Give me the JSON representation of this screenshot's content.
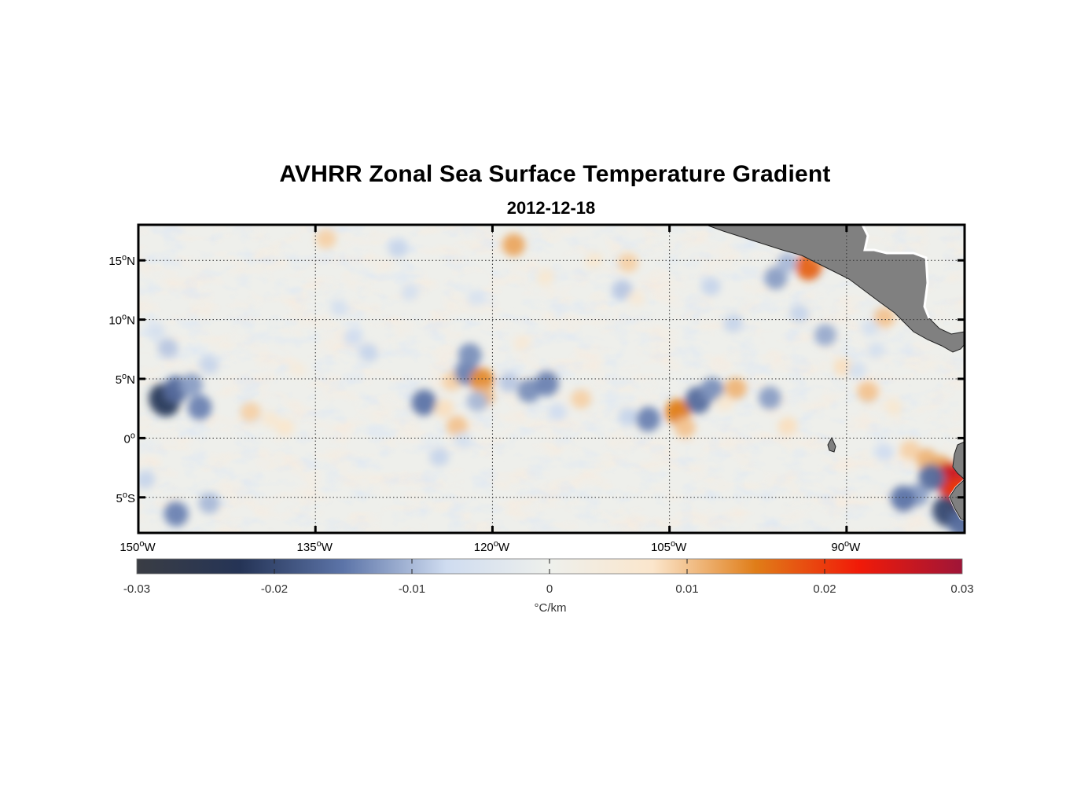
{
  "figure": {
    "title": "AVHRR Zonal Sea Surface Temperature Gradient",
    "subtitle": "2012-12-18"
  },
  "map": {
    "lon_range": [
      -150,
      -80
    ],
    "lat_range": [
      -8,
      18
    ],
    "lon_ticks": [
      {
        "value": -150,
        "num": "150",
        "hemi": "W"
      },
      {
        "value": -135,
        "num": "135",
        "hemi": "W"
      },
      {
        "value": -120,
        "num": "120",
        "hemi": "W"
      },
      {
        "value": -105,
        "num": "105",
        "hemi": "W"
      },
      {
        "value": -90,
        "num": "90",
        "hemi": "W"
      }
    ],
    "lat_ticks": [
      {
        "value": 15,
        "num": "15",
        "hemi": "N"
      },
      {
        "value": 10,
        "num": "10",
        "hemi": "N"
      },
      {
        "value": 5,
        "num": "5",
        "hemi": "N"
      },
      {
        "value": 0,
        "num": "0",
        "hemi": ""
      },
      {
        "value": -5,
        "num": "5",
        "hemi": "S"
      }
    ],
    "land_color": "#808080",
    "grid": "dotted"
  },
  "colorbar": {
    "ticks": [
      "-0.03",
      "-0.02",
      "-0.01",
      "0",
      "0.01",
      "0.02",
      "0.03"
    ],
    "range": [
      -0.03,
      0.03
    ],
    "label": "°C/km",
    "colors": [
      "#3a3d44",
      "#253456",
      "#5c74a8",
      "#cfdcf0",
      "#eef0ec",
      "#fbe6cc",
      "#e07d18",
      "#f11a08",
      "#9f1538"
    ]
  },
  "features": [
    {
      "lon": -147.8,
      "lat": 3.2,
      "v": -0.022
    },
    {
      "lon": -146.8,
      "lat": 4.1,
      "v": -0.016
    },
    {
      "lon": -145.5,
      "lat": 4.5,
      "v": -0.012
    },
    {
      "lon": -144.8,
      "lat": 2.6,
      "v": -0.014
    },
    {
      "lon": -146.8,
      "lat": -6.4,
      "v": -0.014
    },
    {
      "lon": -144.0,
      "lat": -5.5,
      "v": -0.01
    },
    {
      "lon": -149.4,
      "lat": -3.5,
      "v": -0.008
    },
    {
      "lon": -147.5,
      "lat": 7.6,
      "v": -0.009
    },
    {
      "lon": -148.5,
      "lat": 9.0,
      "v": -0.006
    },
    {
      "lon": -144.0,
      "lat": 6.2,
      "v": -0.008
    },
    {
      "lon": -140.5,
      "lat": 2.2,
      "v": 0.009
    },
    {
      "lon": -138.8,
      "lat": 1.6,
      "v": 0.006
    },
    {
      "lon": -137.6,
      "lat": 0.9,
      "v": 0.007
    },
    {
      "lon": -136.5,
      "lat": 5.8,
      "v": 0.004
    },
    {
      "lon": -134.1,
      "lat": 16.8,
      "v": 0.009
    },
    {
      "lon": -133.0,
      "lat": 11.0,
      "v": -0.006
    },
    {
      "lon": -131.8,
      "lat": 8.5,
      "v": -0.007
    },
    {
      "lon": -130.5,
      "lat": 7.2,
      "v": -0.008
    },
    {
      "lon": -128.0,
      "lat": 16.0,
      "v": -0.008
    },
    {
      "lon": -127.0,
      "lat": 12.3,
      "v": -0.006
    },
    {
      "lon": -125.8,
      "lat": 3.0,
      "v": -0.015
    },
    {
      "lon": -124.1,
      "lat": 2.5,
      "v": 0.008
    },
    {
      "lon": -123.0,
      "lat": 1.0,
      "v": 0.01
    },
    {
      "lon": -123.4,
      "lat": 4.8,
      "v": 0.009
    },
    {
      "lon": -122.2,
      "lat": 5.5,
      "v": -0.014
    },
    {
      "lon": -121.9,
      "lat": 7.0,
      "v": -0.013
    },
    {
      "lon": -120.9,
      "lat": 4.9,
      "v": 0.014
    },
    {
      "lon": -120.8,
      "lat": 3.5,
      "v": 0.011
    },
    {
      "lon": -121.3,
      "lat": 3.1,
      "v": -0.01
    },
    {
      "lon": -124.5,
      "lat": -1.6,
      "v": -0.008
    },
    {
      "lon": -122.5,
      "lat": -0.2,
      "v": -0.006
    },
    {
      "lon": -121.4,
      "lat": 11.8,
      "v": -0.005
    },
    {
      "lon": -118.2,
      "lat": 16.3,
      "v": 0.012
    },
    {
      "lon": -118.6,
      "lat": 4.7,
      "v": -0.009
    },
    {
      "lon": -116.9,
      "lat": 4.0,
      "v": -0.013
    },
    {
      "lon": -115.4,
      "lat": 4.6,
      "v": -0.014
    },
    {
      "lon": -117.5,
      "lat": 8.0,
      "v": 0.005
    },
    {
      "lon": -114.5,
      "lat": 2.2,
      "v": -0.007
    },
    {
      "lon": -115.5,
      "lat": 13.6,
      "v": 0.006
    },
    {
      "lon": -112.5,
      "lat": 3.3,
      "v": 0.009
    },
    {
      "lon": -111.4,
      "lat": 15.0,
      "v": 0.006
    },
    {
      "lon": -108.5,
      "lat": 14.8,
      "v": 0.009
    },
    {
      "lon": -109.0,
      "lat": 12.5,
      "v": -0.009
    },
    {
      "lon": -107.8,
      "lat": 11.8,
      "v": 0.005
    },
    {
      "lon": -108.5,
      "lat": 1.8,
      "v": -0.008
    },
    {
      "lon": -106.8,
      "lat": 1.6,
      "v": -0.014
    },
    {
      "lon": -104.3,
      "lat": 2.2,
      "v": 0.015
    },
    {
      "lon": -103.7,
      "lat": 0.9,
      "v": 0.01
    },
    {
      "lon": -102.6,
      "lat": 3.2,
      "v": -0.016
    },
    {
      "lon": -101.4,
      "lat": 4.1,
      "v": -0.013
    },
    {
      "lon": -100.3,
      "lat": 3.0,
      "v": 0.006
    },
    {
      "lon": -99.4,
      "lat": 4.2,
      "v": 0.011
    },
    {
      "lon": -101.5,
      "lat": 12.8,
      "v": -0.008
    },
    {
      "lon": -99.6,
      "lat": 9.7,
      "v": -0.008
    },
    {
      "lon": -96.5,
      "lat": 3.4,
      "v": -0.012
    },
    {
      "lon": -95.0,
      "lat": 1.0,
      "v": 0.008
    },
    {
      "lon": -96.0,
      "lat": 13.5,
      "v": -0.012
    },
    {
      "lon": -95.0,
      "lat": 14.8,
      "v": -0.01
    },
    {
      "lon": -93.2,
      "lat": 14.5,
      "v": 0.017
    },
    {
      "lon": -92.0,
      "lat": 15.6,
      "v": 0.012
    },
    {
      "lon": -94.0,
      "lat": 10.5,
      "v": -0.008
    },
    {
      "lon": -91.8,
      "lat": 8.7,
      "v": -0.011
    },
    {
      "lon": -90.3,
      "lat": 6.0,
      "v": 0.008
    },
    {
      "lon": -89.1,
      "lat": 5.7,
      "v": -0.006
    },
    {
      "lon": -88.2,
      "lat": 3.9,
      "v": 0.01
    },
    {
      "lon": -86.8,
      "lat": 10.2,
      "v": 0.01
    },
    {
      "lon": -86.0,
      "lat": 2.6,
      "v": 0.006
    },
    {
      "lon": -84.6,
      "lat": -1.0,
      "v": 0.009
    },
    {
      "lon": -83.2,
      "lat": -1.8,
      "v": 0.011
    },
    {
      "lon": -82.0,
      "lat": -2.4,
      "v": 0.012
    },
    {
      "lon": -81.1,
      "lat": -3.6,
      "v": 0.026
    },
    {
      "lon": -80.6,
      "lat": -4.8,
      "v": 0.02
    },
    {
      "lon": -81.5,
      "lat": -6.2,
      "v": -0.02
    },
    {
      "lon": -80.3,
      "lat": -7.2,
      "v": -0.016
    },
    {
      "lon": -82.8,
      "lat": -3.3,
      "v": -0.016
    },
    {
      "lon": -84.0,
      "lat": -4.8,
      "v": -0.012
    },
    {
      "lon": -85.2,
      "lat": -5.1,
      "v": -0.015
    },
    {
      "lon": -86.8,
      "lat": -1.2,
      "v": -0.007
    },
    {
      "lon": -87.5,
      "lat": 7.4,
      "v": -0.006
    },
    {
      "lon": -88.0,
      "lat": 9.3,
      "v": -0.006
    }
  ]
}
